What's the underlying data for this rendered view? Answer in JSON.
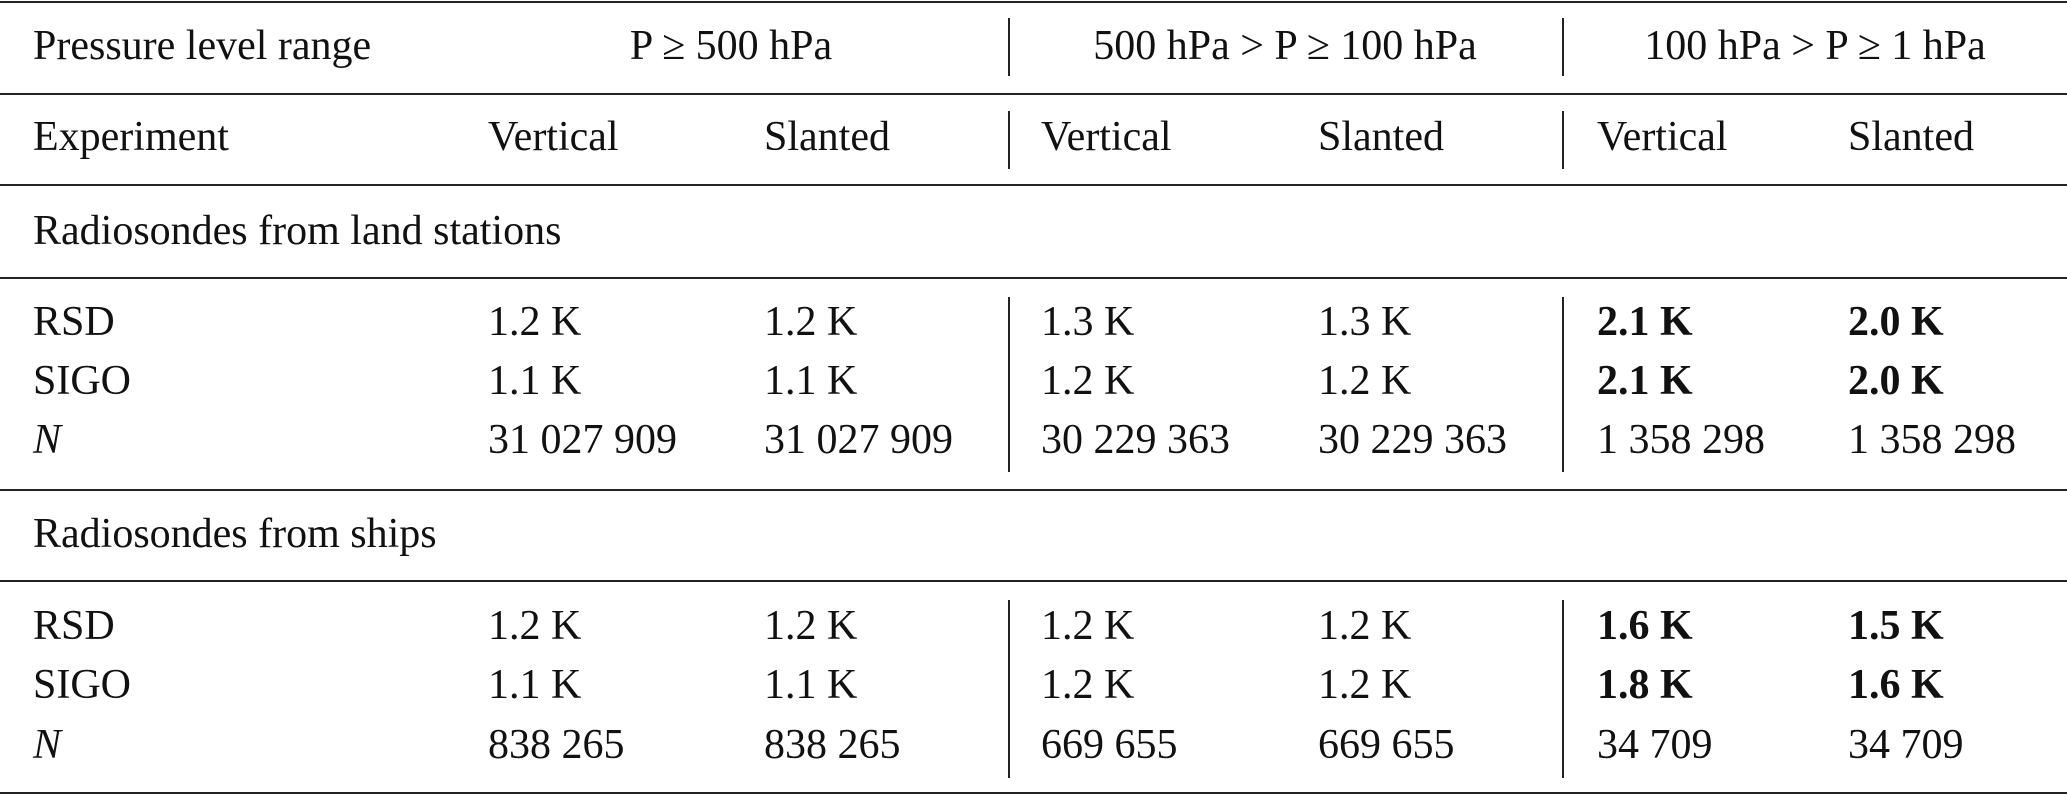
{
  "header": {
    "row1": [
      "Pressure level range",
      "P ≥ 500 hPa",
      "500 hPa > P ≥ 100 hPa",
      "100 hPa > P ≥ 1 hPa"
    ],
    "row2": [
      "Experiment",
      "Vertical",
      "Slanted",
      "Vertical",
      "Slanted",
      "Vertical",
      "Slanted"
    ]
  },
  "sections": [
    {
      "title": "Radiosondes from land stations",
      "rows": [
        [
          "RSD",
          "1.2 K",
          "1.2 K",
          "1.3 K",
          "1.3 K",
          "2.1 K",
          "2.0 K"
        ],
        [
          "SIGO",
          "1.1 K",
          "1.1 K",
          "1.2 K",
          "1.2 K",
          "2.1 K",
          "2.0 K"
        ],
        [
          "N",
          "31 027 909",
          "31 027 909",
          "30 229 363",
          "30 229 363",
          "1 358 298",
          "1 358 298"
        ]
      ]
    },
    {
      "title": "Radiosondes from ships",
      "rows": [
        [
          "RSD",
          "1.2 K",
          "1.2 K",
          "1.2 K",
          "1.2 K",
          "1.6 K",
          "1.5 K"
        ],
        [
          "SIGO",
          "1.1 K",
          "1.1 K",
          "1.2 K",
          "1.2 K",
          "1.8 K",
          "1.6 K"
        ],
        [
          "N",
          "838 265",
          "838 265",
          "669 655",
          "669 655",
          "34 709",
          "34 709"
        ]
      ]
    }
  ]
}
